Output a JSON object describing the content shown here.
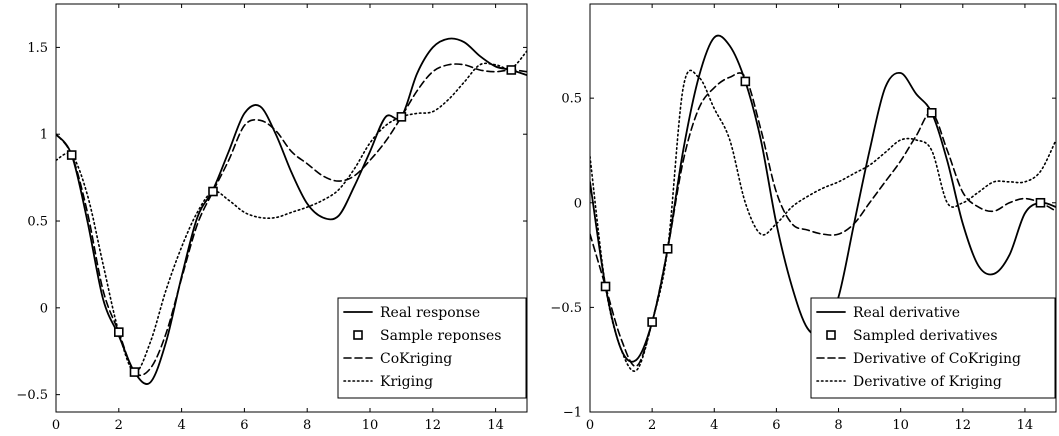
{
  "chart_data": [
    {
      "type": "line",
      "title": "",
      "xlabel": "",
      "ylabel": "",
      "xlim": [
        0,
        15
      ],
      "ylim": [
        -0.6,
        1.75
      ],
      "xticks": [
        0,
        2,
        4,
        6,
        8,
        10,
        12,
        14
      ],
      "xtick_labels": [
        "0",
        "2",
        "4",
        "6",
        "8",
        "10",
        "12",
        "14"
      ],
      "yticks": [
        -0.5,
        0,
        0.5,
        1,
        1.5
      ],
      "ytick_labels": [
        "−0.5",
        "0",
        "0.5",
        "1",
        "1.5"
      ],
      "grid": false,
      "legend_position": "bottom-right",
      "series": [
        {
          "name": "Real response",
          "style": "solid",
          "x": [
            0,
            0.5,
            1,
            1.5,
            2,
            2.5,
            3,
            3.5,
            4,
            4.5,
            5,
            5.5,
            6,
            6.5,
            7,
            7.5,
            8,
            8.5,
            9,
            9.5,
            10,
            10.5,
            11,
            11.5,
            12,
            12.5,
            13,
            13.5,
            14,
            14.5,
            15
          ],
          "y": [
            1.0,
            0.88,
            0.5,
            0.05,
            -0.16,
            -0.37,
            -0.43,
            -0.2,
            0.18,
            0.52,
            0.68,
            0.9,
            1.12,
            1.16,
            1.0,
            0.78,
            0.6,
            0.52,
            0.53,
            0.7,
            0.9,
            1.1,
            1.1,
            1.35,
            1.5,
            1.55,
            1.53,
            1.45,
            1.39,
            1.37,
            1.34
          ]
        },
        {
          "name": "Sample reponses",
          "style": "marker",
          "x": [
            0.5,
            2,
            2.5,
            5,
            11,
            14.5
          ],
          "y": [
            0.88,
            -0.14,
            -0.37,
            0.67,
            1.1,
            1.37
          ]
        },
        {
          "name": "CoKriging",
          "style": "dashed",
          "x": [
            0,
            0.5,
            1,
            1.5,
            2,
            2.5,
            3,
            3.5,
            4,
            4.5,
            5,
            5.5,
            6,
            6.5,
            7,
            7.5,
            8,
            8.5,
            9,
            9.5,
            10,
            10.5,
            11,
            11.5,
            12,
            12.5,
            13,
            13.5,
            14,
            14.5,
            15
          ],
          "y": [
            1.0,
            0.88,
            0.55,
            0.1,
            -0.14,
            -0.37,
            -0.35,
            -0.15,
            0.17,
            0.48,
            0.67,
            0.85,
            1.05,
            1.08,
            1.02,
            0.9,
            0.83,
            0.76,
            0.73,
            0.76,
            0.85,
            0.96,
            1.1,
            1.25,
            1.36,
            1.4,
            1.4,
            1.37,
            1.36,
            1.37,
            1.36
          ]
        },
        {
          "name": "Kriging",
          "style": "dotted",
          "x": [
            0,
            0.5,
            1,
            1.5,
            2,
            2.5,
            3,
            3.5,
            4,
            4.5,
            5,
            5.5,
            6,
            6.5,
            7,
            7.5,
            8,
            8.5,
            9,
            9.5,
            10,
            10.5,
            11,
            11.5,
            12,
            12.5,
            13,
            13.5,
            14,
            14.5,
            15
          ],
          "y": [
            0.85,
            0.88,
            0.65,
            0.25,
            -0.14,
            -0.37,
            -0.2,
            0.1,
            0.35,
            0.55,
            0.67,
            0.62,
            0.55,
            0.52,
            0.52,
            0.55,
            0.58,
            0.62,
            0.68,
            0.8,
            0.95,
            1.05,
            1.1,
            1.12,
            1.13,
            1.2,
            1.3,
            1.4,
            1.4,
            1.38,
            1.48
          ]
        }
      ]
    },
    {
      "type": "line",
      "title": "",
      "xlabel": "",
      "ylabel": "",
      "xlim": [
        0,
        15
      ],
      "ylim": [
        -1.0,
        0.95
      ],
      "xticks": [
        0,
        2,
        4,
        6,
        8,
        10,
        12,
        14
      ],
      "xtick_labels": [
        "0",
        "2",
        "4",
        "6",
        "8",
        "10",
        "12",
        "14"
      ],
      "yticks": [
        -1,
        -0.5,
        0,
        0.5
      ],
      "ytick_labels": [
        "−1",
        "−0.5",
        "0",
        "0.5"
      ],
      "grid": false,
      "legend_position": "bottom-right",
      "series": [
        {
          "name": "Real derivative",
          "style": "solid",
          "x": [
            0,
            0.5,
            1,
            1.5,
            2,
            2.5,
            3,
            3.5,
            4,
            4.5,
            5,
            5.5,
            6,
            6.5,
            7,
            7.5,
            8,
            8.5,
            9,
            9.5,
            10,
            10.5,
            11,
            11.5,
            12,
            12.5,
            13,
            13.5,
            14,
            14.5,
            15
          ],
          "y": [
            0.1,
            -0.4,
            -0.7,
            -0.75,
            -0.57,
            -0.22,
            0.25,
            0.6,
            0.79,
            0.75,
            0.58,
            0.3,
            -0.1,
            -0.4,
            -0.6,
            -0.62,
            -0.45,
            -0.1,
            0.25,
            0.55,
            0.62,
            0.52,
            0.43,
            0.2,
            -0.1,
            -0.3,
            -0.34,
            -0.25,
            -0.05,
            0.0,
            -0.02
          ]
        },
        {
          "name": "Sampled derivatives",
          "style": "marker",
          "x": [
            0.5,
            2,
            2.5,
            5,
            11,
            14.5
          ],
          "y": [
            -0.4,
            -0.57,
            -0.22,
            0.58,
            0.43,
            0.0
          ]
        },
        {
          "name": "Derivative of CoKriging",
          "style": "dashed",
          "x": [
            0,
            0.5,
            1,
            1.5,
            2,
            2.5,
            3,
            3.5,
            4,
            4.5,
            5,
            5.5,
            6,
            6.5,
            7,
            7.5,
            8,
            8.5,
            9,
            9.5,
            10,
            10.5,
            11,
            11.5,
            12,
            12.5,
            13,
            13.5,
            14,
            14.5,
            15
          ],
          "y": [
            -0.15,
            -0.4,
            -0.65,
            -0.78,
            -0.57,
            -0.22,
            0.2,
            0.45,
            0.55,
            0.6,
            0.6,
            0.35,
            0.05,
            -0.1,
            -0.13,
            -0.15,
            -0.15,
            -0.1,
            0.0,
            0.1,
            0.2,
            0.32,
            0.43,
            0.25,
            0.05,
            -0.02,
            -0.04,
            0.0,
            0.02,
            0.0,
            -0.04
          ]
        },
        {
          "name": "Derivative of Kriging",
          "style": "dotted",
          "x": [
            0,
            0.5,
            1,
            1.5,
            2,
            2.5,
            3,
            3.5,
            4,
            4.5,
            5,
            5.5,
            6,
            6.5,
            7,
            7.5,
            8,
            8.5,
            9,
            9.5,
            10,
            10.5,
            11,
            11.5,
            12,
            12.5,
            13,
            13.5,
            14,
            14.5,
            15
          ],
          "y": [
            0.22,
            -0.4,
            -0.7,
            -0.8,
            -0.57,
            -0.22,
            0.55,
            0.6,
            0.45,
            0.3,
            0.0,
            -0.15,
            -0.1,
            -0.02,
            0.03,
            0.07,
            0.1,
            0.14,
            0.18,
            0.24,
            0.3,
            0.3,
            0.25,
            0.0,
            0.0,
            0.05,
            0.1,
            0.1,
            0.1,
            0.15,
            0.3
          ]
        }
      ]
    }
  ]
}
